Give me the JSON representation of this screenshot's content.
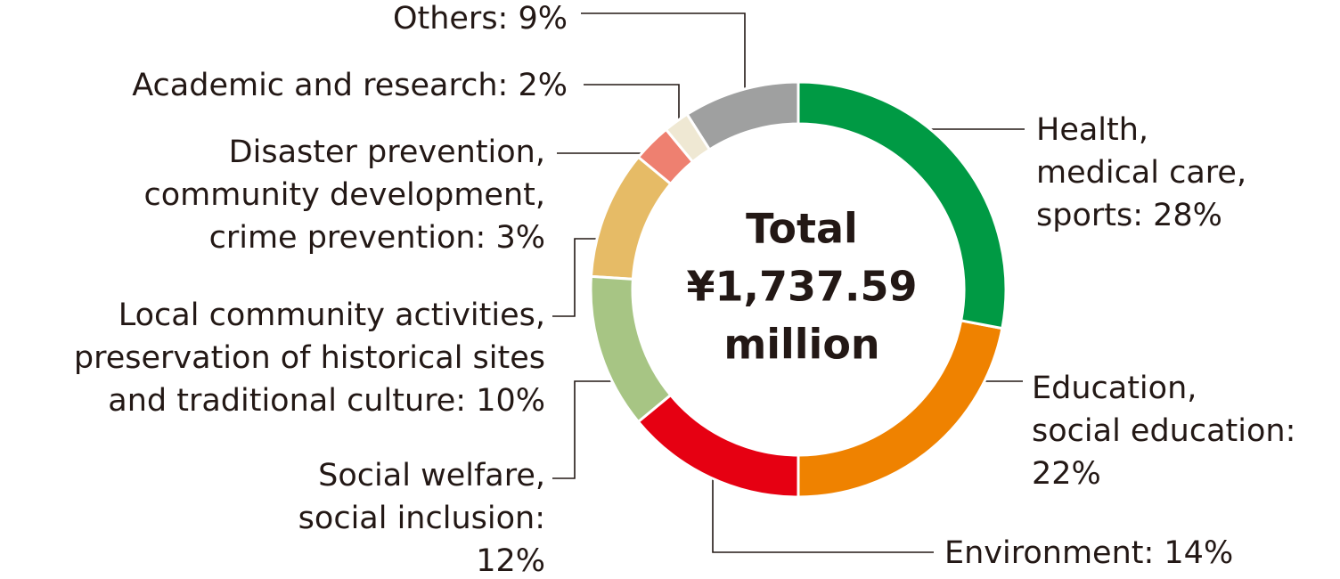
{
  "chart_data": {
    "type": "pie",
    "center_text": [
      "Total",
      "¥1,737.59",
      "million"
    ],
    "values": [
      28,
      22,
      14,
      12,
      10,
      3,
      2,
      9
    ],
    "value_labels": [
      [
        "Health,",
        "medical care,",
        "sports: 28%"
      ],
      [
        "Education,",
        "social education:",
        "22%"
      ],
      [
        "Environment: 14%"
      ],
      [
        "Social welfare,",
        "social inclusion:",
        "12%"
      ],
      [
        "Local community activities,",
        "preservation of historical sites",
        "and traditional culture: 10%"
      ],
      [
        "Disaster prevention,",
        "community development,",
        "crime prevention: 3%"
      ],
      [
        "Academic and research: 2%"
      ],
      [
        "Others: 9%"
      ]
    ],
    "colors": [
      "#009a44",
      "#ef8200",
      "#e60012",
      "#a7c584",
      "#e6bb66",
      "#ee8070",
      "#efe8d3",
      "#9fa0a0"
    ]
  }
}
